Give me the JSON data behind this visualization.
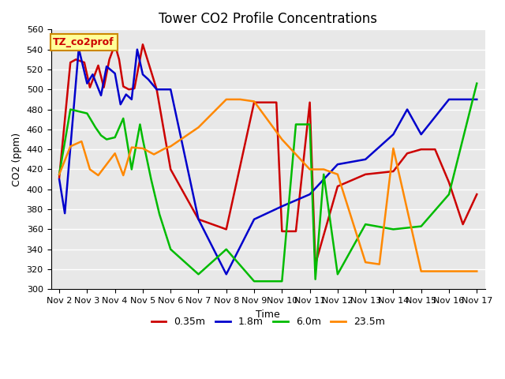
{
  "title": "Tower CO2 Profile Concentrations",
  "xlabel": "Time",
  "ylabel": "CO2 (ppm)",
  "ylim": [
    300,
    560
  ],
  "yticks": [
    300,
    320,
    340,
    360,
    380,
    400,
    420,
    440,
    460,
    480,
    500,
    520,
    540,
    560
  ],
  "xlim_min": 1.7,
  "xlim_max": 17.3,
  "xtick_labels": [
    "Nov 2",
    "Nov 3",
    "Nov 4",
    "Nov 5",
    "Nov 6",
    "Nov 7",
    "Nov 8",
    "Nov 9",
    "Nov 10",
    "Nov 11",
    "Nov 12",
    "Nov 13",
    "Nov 14",
    "Nov 15",
    "Nov 16",
    "Nov 17"
  ],
  "xtick_positions": [
    2,
    3,
    4,
    5,
    6,
    7,
    8,
    9,
    10,
    11,
    12,
    13,
    14,
    15,
    16,
    17
  ],
  "annotation_text": "TZ_co2prof",
  "annotation_color": "#cc0000",
  "annotation_bg": "#ffff99",
  "annotation_border": "#cc8800",
  "series": [
    {
      "label": "0.35m",
      "color": "#cc0000",
      "x": [
        2.0,
        2.4,
        2.6,
        2.9,
        3.1,
        3.4,
        3.6,
        3.8,
        4.0,
        4.15,
        4.3,
        4.5,
        4.7,
        5.0,
        5.5,
        6.0,
        7.0,
        8.0,
        9.0,
        9.8,
        10.0,
        10.5,
        11.0,
        11.2,
        12.0,
        13.0,
        14.0,
        14.5,
        15.0,
        15.5,
        16.0,
        16.5,
        17.0
      ],
      "y": [
        412,
        527,
        530,
        527,
        502,
        524,
        502,
        530,
        545,
        530,
        503,
        500,
        501,
        545,
        500,
        420,
        370,
        360,
        487,
        487,
        358,
        358,
        487,
        325,
        403,
        415,
        418,
        436,
        440,
        440,
        407,
        365,
        395
      ]
    },
    {
      "label": "1.8m",
      "color": "#0000cc",
      "x": [
        2.0,
        2.2,
        2.7,
        3.0,
        3.2,
        3.5,
        3.7,
        4.0,
        4.2,
        4.4,
        4.6,
        4.8,
        5.0,
        5.2,
        5.5,
        6.0,
        7.0,
        8.0,
        9.0,
        10.0,
        11.0,
        12.0,
        13.0,
        14.0,
        14.5,
        15.0,
        16.0,
        17.0
      ],
      "y": [
        410,
        376,
        541,
        506,
        515,
        494,
        523,
        516,
        485,
        495,
        490,
        540,
        515,
        510,
        500,
        500,
        370,
        315,
        370,
        383,
        395,
        425,
        430,
        455,
        480,
        455,
        490,
        490
      ]
    },
    {
      "label": "6.0m",
      "color": "#00bb00",
      "x": [
        2.0,
        2.4,
        3.0,
        3.3,
        3.5,
        3.7,
        4.0,
        4.3,
        4.6,
        4.9,
        5.0,
        5.3,
        5.6,
        6.0,
        7.0,
        8.0,
        9.0,
        10.0,
        10.5,
        11.0,
        11.2,
        11.5,
        12.0,
        13.0,
        14.0,
        15.0,
        16.0,
        17.0
      ],
      "y": [
        415,
        480,
        476,
        462,
        454,
        450,
        452,
        471,
        420,
        465,
        450,
        410,
        375,
        340,
        315,
        340,
        308,
        308,
        465,
        465,
        310,
        415,
        315,
        365,
        360,
        363,
        395,
        506
      ]
    },
    {
      "label": "23.5m",
      "color": "#ff8800",
      "x": [
        2.0,
        2.4,
        2.8,
        3.1,
        3.4,
        3.7,
        4.0,
        4.3,
        4.6,
        5.0,
        5.4,
        5.8,
        6.0,
        7.0,
        8.0,
        8.5,
        9.0,
        10.0,
        11.0,
        11.5,
        12.0,
        13.0,
        13.5,
        14.0,
        15.0,
        16.0,
        17.0
      ],
      "y": [
        415,
        443,
        448,
        420,
        414,
        425,
        436,
        414,
        442,
        441,
        435,
        441,
        443,
        462,
        490,
        490,
        488,
        450,
        420,
        420,
        415,
        327,
        325,
        441,
        318,
        318,
        318
      ]
    }
  ],
  "legend_labels": [
    "0.35m",
    "1.8m",
    "6.0m",
    "23.5m"
  ],
  "legend_colors": [
    "#cc0000",
    "#0000cc",
    "#00bb00",
    "#ff8800"
  ],
  "plot_bg": "#e8e8e8",
  "fig_bg": "#ffffff",
  "grid_color": "#ffffff",
  "linewidth": 1.8,
  "title_fontsize": 12,
  "label_fontsize": 9,
  "tick_fontsize": 8,
  "legend_fontsize": 9
}
